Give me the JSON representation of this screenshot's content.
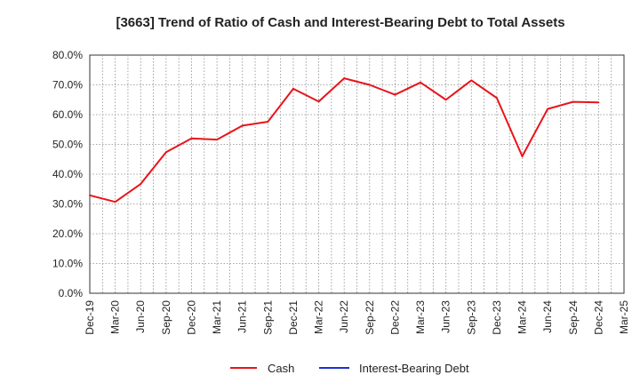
{
  "chart_data": {
    "type": "line",
    "title": "[3663]  Trend of Ratio of Cash and Interest-Bearing Debt to Total Assets",
    "xlabel": "",
    "ylabel": "",
    "categories": [
      "Dec-19",
      "Mar-20",
      "Jun-20",
      "Sep-20",
      "Dec-20",
      "Mar-21",
      "Jun-21",
      "Sep-21",
      "Dec-21",
      "Mar-22",
      "Jun-22",
      "Sep-22",
      "Dec-22",
      "Mar-23",
      "Jun-23",
      "Sep-23",
      "Dec-23",
      "Mar-24",
      "Jun-24",
      "Sep-24",
      "Dec-24",
      "Mar-25"
    ],
    "y_ticks": [
      "0.0%",
      "10.0%",
      "20.0%",
      "30.0%",
      "40.0%",
      "50.0%",
      "60.0%",
      "70.0%",
      "80.0%"
    ],
    "ylim": [
      0,
      80
    ],
    "grid": true,
    "legend_position": "bottom",
    "series": [
      {
        "name": "Cash",
        "color": "#e8141b",
        "values": [
          32.9,
          30.7,
          36.7,
          47.4,
          52.0,
          51.6,
          56.3,
          57.6,
          68.7,
          64.4,
          72.2,
          70.0,
          66.7,
          70.8,
          65.0,
          71.5,
          65.6,
          46.0,
          61.9,
          64.3,
          64.1,
          null
        ]
      },
      {
        "name": "Interest-Bearing Debt",
        "color": "#1f2fd6",
        "values": [
          null,
          null,
          null,
          null,
          null,
          null,
          null,
          null,
          null,
          null,
          null,
          null,
          null,
          null,
          null,
          null,
          null,
          null,
          null,
          null,
          null,
          null
        ]
      }
    ]
  }
}
